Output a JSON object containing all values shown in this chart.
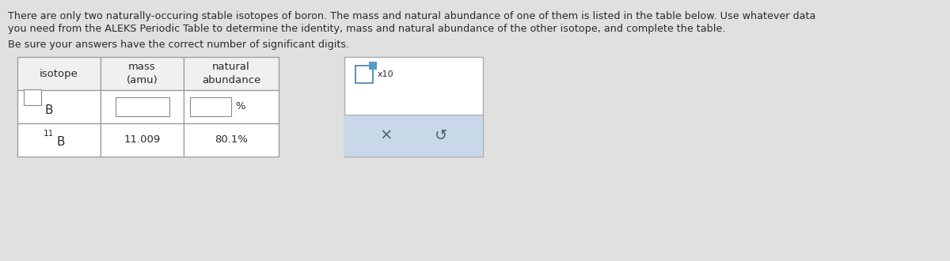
{
  "bg_color": "#e0e0e0",
  "title_line1": "There are only two naturally-occuring stable isotopes of boron. The mass and natural abundance of one of them is listed in the table below. Use whatever data",
  "title_line2": "you need from the ALEKS Periodic Table to determine the identity, mass and natural abundance of the other isotope, and complete the table.",
  "subtitle_text": "Be sure your answers have the correct number of significant digits.",
  "table_header": [
    "isotope",
    "mass\n(amu)",
    "natural\nabundance"
  ],
  "row2_mass": "11.009",
  "row2_abundance": "80.1%",
  "input_bg": "#ffffff",
  "input_border": "#999999",
  "table_bg": "#f0f0f0",
  "cell_border": "#999999",
  "side_panel_bg": "#ffffff",
  "side_panel_border": "#aaaaaa",
  "side_btn_bg": "#c8d8e8",
  "side_btn_border": "#9ab0c0",
  "text_color": "#2a2a2a",
  "title_fontsize": 9.2,
  "subtitle_fontsize": 9.2,
  "table_fontsize": 9.5,
  "cell_fontsize": 9.5,
  "isotope_B_fontsize": 11
}
